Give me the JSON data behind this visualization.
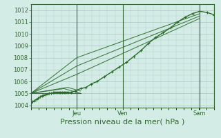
{
  "bg_color": "#d4ece6",
  "grid_color": "#b0ccca",
  "line_color": "#2a6b2a",
  "title": "Pression niveau de la mer( hPa )",
  "ylim": [
    1003.8,
    1012.5
  ],
  "yticks": [
    1004,
    1005,
    1006,
    1007,
    1008,
    1009,
    1010,
    1011,
    1012
  ],
  "day_labels": [
    "Jeu",
    "Ven",
    "Sam"
  ],
  "day_positions": [
    0.25,
    0.5,
    0.92
  ],
  "xlim": [
    0.0,
    1.0
  ],
  "series": [
    {
      "x": [
        0.0,
        0.01,
        0.02,
        0.03,
        0.04,
        0.05,
        0.06,
        0.07,
        0.08,
        0.09,
        0.1,
        0.11,
        0.12,
        0.13,
        0.14,
        0.15,
        0.16,
        0.17,
        0.18,
        0.19,
        0.2,
        0.22,
        0.24,
        0.27,
        0.3,
        0.33,
        0.36,
        0.4,
        0.44,
        0.48,
        0.52,
        0.56,
        0.6,
        0.64,
        0.68,
        0.72,
        0.76,
        0.8,
        0.84,
        0.88,
        0.92,
        0.96,
        1.0
      ],
      "y": [
        1004.2,
        1004.3,
        1004.4,
        1004.5,
        1004.6,
        1004.7,
        1004.8,
        1004.85,
        1004.9,
        1004.95,
        1005.0,
        1005.0,
        1005.05,
        1005.1,
        1005.1,
        1005.1,
        1005.1,
        1005.1,
        1005.1,
        1005.1,
        1005.1,
        1005.1,
        1005.2,
        1005.4,
        1005.5,
        1005.8,
        1006.0,
        1006.4,
        1006.8,
        1007.2,
        1007.6,
        1008.1,
        1008.6,
        1009.2,
        1009.7,
        1010.1,
        1010.5,
        1011.0,
        1011.4,
        1011.7,
        1011.9,
        1011.8,
        1011.6
      ],
      "with_markers": true,
      "linewidth": 1.0
    },
    {
      "x": [
        0.0,
        0.25,
        0.92
      ],
      "y": [
        1005.0,
        1008.0,
        1011.7
      ],
      "with_markers": false,
      "linewidth": 0.8
    },
    {
      "x": [
        0.0,
        0.25,
        0.92
      ],
      "y": [
        1005.0,
        1007.3,
        1011.5
      ],
      "with_markers": false,
      "linewidth": 0.8
    },
    {
      "x": [
        0.0,
        0.25,
        0.92
      ],
      "y": [
        1005.0,
        1006.6,
        1011.3
      ],
      "with_markers": false,
      "linewidth": 0.8
    },
    {
      "x": [
        0.0,
        0.2,
        0.27
      ],
      "y": [
        1005.0,
        1005.5,
        1005.2
      ],
      "with_markers": false,
      "linewidth": 0.8
    },
    {
      "x": [
        0.0,
        0.18,
        0.27
      ],
      "y": [
        1005.0,
        1005.4,
        1005.0
      ],
      "with_markers": false,
      "linewidth": 0.8
    },
    {
      "x": [
        0.0,
        0.27
      ],
      "y": [
        1005.0,
        1005.0
      ],
      "with_markers": false,
      "linewidth": 0.8
    }
  ],
  "border_color": "#336633",
  "tick_fontsize": 6.0,
  "label_fontsize": 8.0
}
